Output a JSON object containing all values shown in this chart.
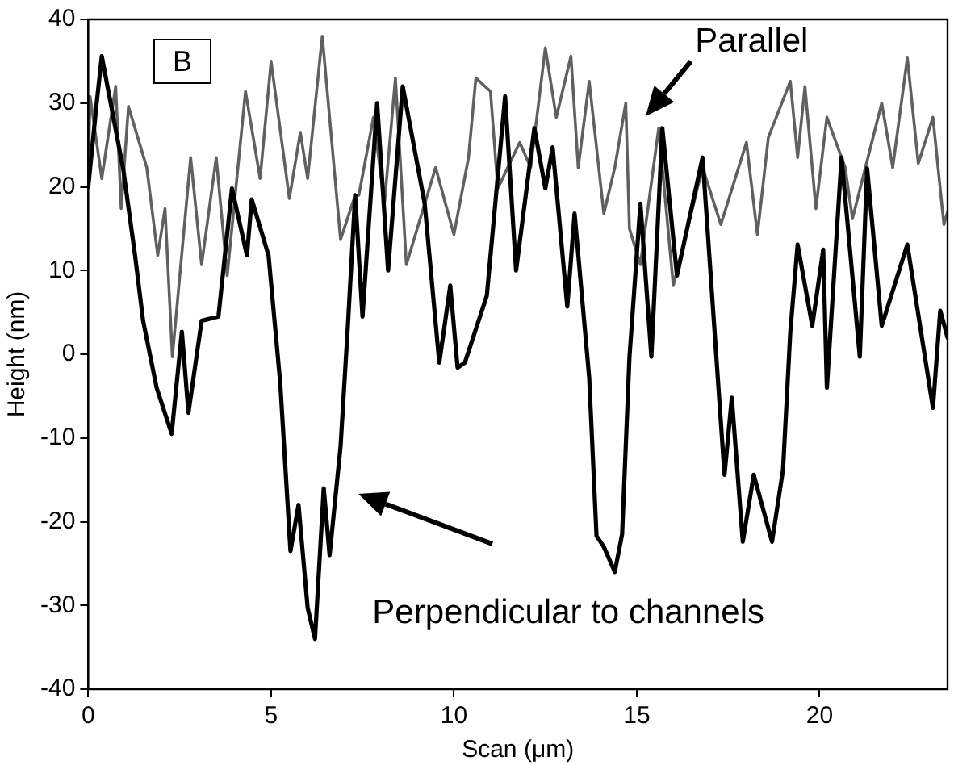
{
  "chart_data": {
    "type": "line",
    "xlabel": "Scan (μm)",
    "ylabel": "Height (nm)",
    "xlim": [
      0,
      23.5
    ],
    "ylim": [
      -40,
      40
    ],
    "xticks": [
      0,
      5,
      10,
      15,
      20
    ],
    "yticks": [
      -40,
      -30,
      -20,
      -10,
      0,
      10,
      20,
      30,
      40
    ],
    "grid": false,
    "legend": false,
    "marker": "none",
    "line_style": "solid",
    "annotations": [
      "B",
      "Parallel",
      "Perpendicular to channels"
    ],
    "series": [
      {
        "color": "#606060",
        "x": [
          0,
          0.05,
          0.37,
          0.75,
          0.9,
          1.1,
          1.6,
          1.9,
          2.1,
          2.3,
          2.8,
          3.1,
          3.5,
          3.8,
          4.3,
          4.7,
          5.0,
          5.5,
          5.8,
          6.0,
          6.4,
          6.9,
          7.3,
          7.4,
          7.8,
          8.1,
          8.4,
          8.7,
          9.5,
          10,
          10.4,
          10.6,
          11,
          11.2,
          11.8,
          12.1,
          12.5,
          12.8,
          13.2,
          13.4,
          13.7,
          14.1,
          14.4,
          14.7,
          14.8,
          15.1,
          15.6,
          16,
          16.8,
          17.3,
          18,
          18.3,
          18.6,
          19.2,
          19.4,
          19.6,
          19.9,
          20.2,
          20.7,
          20.9,
          21.7,
          22,
          22.4,
          22.7,
          23.1,
          23.4,
          23.5
        ],
        "values": [
          22,
          30.8,
          21,
          32,
          17.4,
          29.6,
          22.3,
          11.8,
          17.4,
          -0.3,
          23.5,
          10.7,
          23.5,
          9.4,
          31.4,
          21,
          35,
          18.6,
          26.5,
          21,
          38,
          13.7,
          19,
          19,
          28.3,
          18,
          33,
          10.7,
          22.3,
          14.3,
          23.5,
          33,
          31.4,
          19.8,
          25.3,
          22.3,
          36.6,
          28.3,
          35.6,
          22.3,
          32.6,
          16.8,
          22.3,
          30,
          15,
          10.7,
          27,
          8.2,
          22.3,
          15.5,
          25.3,
          14.3,
          25.9,
          32.6,
          23.5,
          32,
          17.4,
          28.3,
          22.3,
          16.2,
          30,
          22.3,
          35.4,
          22.8,
          28.3,
          15.5,
          17
        ]
      },
      {
        "color": "#000000",
        "x": [
          0,
          0.23,
          0.37,
          0.96,
          1.28,
          1.5,
          1.87,
          2.28,
          2.56,
          2.74,
          3.1,
          3.56,
          3.93,
          4.34,
          4.47,
          4.93,
          5.25,
          5.53,
          5.75,
          6.0,
          6.2,
          6.44,
          6.6,
          6.9,
          7.1,
          7.3,
          7.5,
          7.9,
          8.2,
          8.6,
          9.2,
          9.6,
          9.9,
          10.1,
          10.3,
          10.9,
          11.4,
          11.7,
          12.2,
          12.5,
          12.7,
          13.1,
          13.3,
          13.7,
          13.9,
          14.1,
          14.4,
          14.6,
          14.8,
          15.1,
          15.4,
          15.7,
          16.1,
          16.8,
          17.4,
          17.6,
          17.9,
          18.2,
          18.7,
          19,
          19.2,
          19.4,
          19.8,
          20.1,
          20.2,
          20.6,
          21.1,
          21.3,
          21.7,
          22.4,
          23.1,
          23.3,
          23.5
        ],
        "values": [
          20,
          30,
          35.6,
          22,
          11.8,
          4,
          -4,
          -9.5,
          2.7,
          -7,
          4,
          4.5,
          19.8,
          11.8,
          18.5,
          11.8,
          -3.4,
          -23.5,
          -18,
          -30.3,
          -34,
          -16,
          -24,
          -11,
          3.4,
          19,
          4.5,
          30,
          10,
          32,
          18,
          -1,
          8.2,
          -1.6,
          -1,
          7,
          30.8,
          10,
          27,
          19.8,
          24.7,
          5.7,
          16.8,
          -2.8,
          -21.7,
          -23,
          -26,
          -21.5,
          -0.4,
          18,
          -0.3,
          27,
          9.4,
          23.5,
          -14.4,
          -5.2,
          -22.4,
          -14.4,
          -22.4,
          -13.8,
          2.7,
          13.1,
          3.4,
          12.5,
          -4,
          23.5,
          -0.3,
          22.2,
          3.4,
          13.1,
          -6.4,
          5.2,
          2
        ]
      }
    ]
  }
}
